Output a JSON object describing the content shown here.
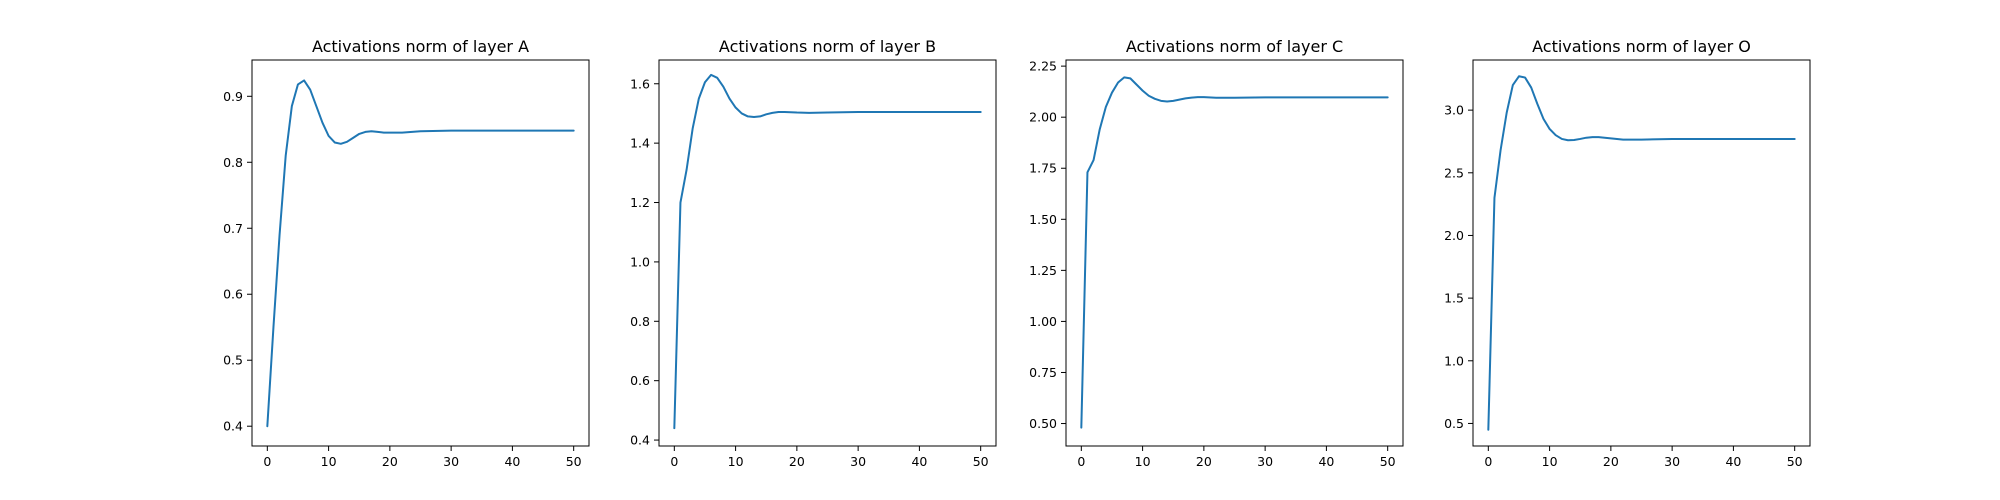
{
  "chart_data": [
    {
      "type": "line",
      "title": "Activations norm of layer A",
      "xlabel": "",
      "ylabel": "",
      "xlim": [
        -2.5,
        52.5
      ],
      "ylim": [
        0.37,
        0.955
      ],
      "xticks": [
        0,
        10,
        20,
        30,
        40,
        50
      ],
      "yticks": [
        0.4,
        0.5,
        0.6,
        0.7,
        0.8,
        0.9
      ],
      "ytick_labels": [
        "0.4",
        "0.5",
        "0.6",
        "0.7",
        "0.8",
        "0.9"
      ],
      "grid": false,
      "line_color": "#1f77b4",
      "x": [
        0,
        1,
        2,
        3,
        4,
        5,
        6,
        7,
        8,
        9,
        10,
        11,
        12,
        13,
        14,
        15,
        16,
        17,
        18,
        19,
        20,
        22,
        25,
        30,
        35,
        40,
        45,
        50
      ],
      "y": [
        0.4,
        0.55,
        0.69,
        0.81,
        0.885,
        0.918,
        0.924,
        0.91,
        0.885,
        0.86,
        0.84,
        0.83,
        0.828,
        0.831,
        0.837,
        0.843,
        0.846,
        0.847,
        0.846,
        0.845,
        0.845,
        0.845,
        0.847,
        0.848,
        0.848,
        0.848,
        0.848,
        0.848
      ]
    },
    {
      "type": "line",
      "title": "Activations norm of layer B",
      "xlabel": "",
      "ylabel": "",
      "xlim": [
        -2.5,
        52.5
      ],
      "ylim": [
        0.38,
        1.68
      ],
      "xticks": [
        0,
        10,
        20,
        30,
        40,
        50
      ],
      "yticks": [
        0.4,
        0.6,
        0.8,
        1.0,
        1.2,
        1.4,
        1.6
      ],
      "ytick_labels": [
        "0.4",
        "0.6",
        "0.8",
        "1.0",
        "1.2",
        "1.4",
        "1.6"
      ],
      "grid": false,
      "line_color": "#1f77b4",
      "x": [
        0,
        1,
        2,
        3,
        4,
        5,
        6,
        7,
        8,
        9,
        10,
        11,
        12,
        13,
        14,
        15,
        16,
        17,
        18,
        19,
        20,
        22,
        25,
        30,
        35,
        40,
        45,
        50
      ],
      "y": [
        0.44,
        1.2,
        1.31,
        1.45,
        1.55,
        1.605,
        1.63,
        1.62,
        1.59,
        1.55,
        1.52,
        1.5,
        1.49,
        1.488,
        1.49,
        1.497,
        1.502,
        1.505,
        1.505,
        1.504,
        1.503,
        1.502,
        1.503,
        1.505,
        1.505,
        1.505,
        1.505,
        1.505
      ]
    },
    {
      "type": "line",
      "title": "Activations norm of layer C",
      "xlabel": "",
      "ylabel": "",
      "xlim": [
        -2.5,
        52.5
      ],
      "ylim": [
        0.39,
        2.28
      ],
      "xticks": [
        0,
        10,
        20,
        30,
        40,
        50
      ],
      "yticks": [
        0.5,
        0.75,
        1.0,
        1.25,
        1.5,
        1.75,
        2.0,
        2.25
      ],
      "ytick_labels": [
        "0.50",
        "0.75",
        "1.00",
        "1.25",
        "1.50",
        "1.75",
        "2.00",
        "2.25"
      ],
      "grid": false,
      "line_color": "#1f77b4",
      "x": [
        0,
        1,
        2,
        3,
        4,
        5,
        6,
        7,
        8,
        9,
        10,
        11,
        12,
        13,
        14,
        15,
        16,
        17,
        18,
        19,
        20,
        22,
        25,
        30,
        35,
        40,
        45,
        50
      ],
      "y": [
        0.48,
        1.73,
        1.79,
        1.94,
        2.05,
        2.12,
        2.17,
        2.195,
        2.19,
        2.16,
        2.13,
        2.105,
        2.09,
        2.08,
        2.077,
        2.08,
        2.086,
        2.092,
        2.096,
        2.098,
        2.098,
        2.095,
        2.095,
        2.097,
        2.097,
        2.097,
        2.097,
        2.097
      ]
    },
    {
      "type": "line",
      "title": "Activations norm of layer O",
      "xlabel": "",
      "ylabel": "",
      "xlim": [
        -2.5,
        52.5
      ],
      "ylim": [
        0.32,
        3.4
      ],
      "xticks": [
        0,
        10,
        20,
        30,
        40,
        50
      ],
      "yticks": [
        0.5,
        1.0,
        1.5,
        2.0,
        2.5,
        3.0
      ],
      "ytick_labels": [
        "0.5",
        "1.0",
        "1.5",
        "2.0",
        "2.5",
        "3.0"
      ],
      "grid": false,
      "line_color": "#1f77b4",
      "x": [
        0,
        1,
        2,
        3,
        4,
        5,
        6,
        7,
        8,
        9,
        10,
        11,
        12,
        13,
        14,
        15,
        16,
        17,
        18,
        19,
        20,
        22,
        25,
        30,
        35,
        40,
        45,
        50
      ],
      "y": [
        0.45,
        2.3,
        2.68,
        2.98,
        3.2,
        3.27,
        3.26,
        3.18,
        3.05,
        2.93,
        2.85,
        2.8,
        2.77,
        2.76,
        2.762,
        2.77,
        2.78,
        2.785,
        2.785,
        2.78,
        2.775,
        2.765,
        2.765,
        2.77,
        2.77,
        2.77,
        2.77,
        2.77
      ]
    }
  ]
}
